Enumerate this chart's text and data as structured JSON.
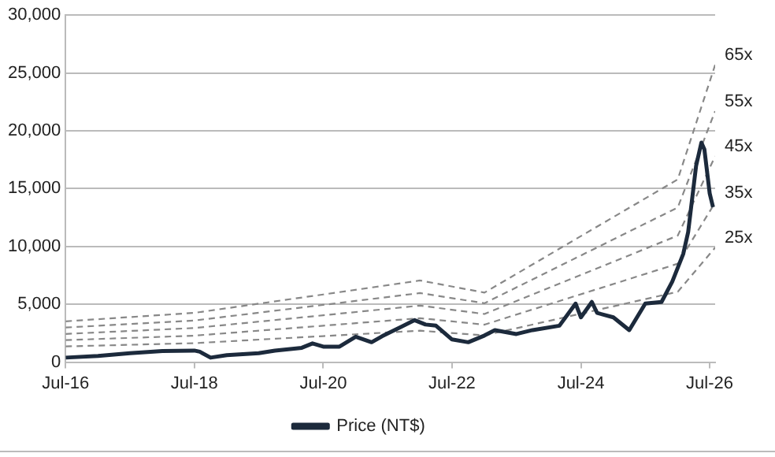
{
  "chart_data": {
    "type": "line",
    "x": [
      "2016-07",
      "2017-01",
      "2017-07",
      "2018-01",
      "2018-07",
      "2018-08",
      "2018-10",
      "2019-01",
      "2019-07",
      "2019-10",
      "2020-03",
      "2020-05",
      "2020-07",
      "2020-10",
      "2021-01",
      "2021-04",
      "2021-06",
      "2021-12",
      "2022-02",
      "2022-04",
      "2022-07",
      "2022-10",
      "2023-01",
      "2023-03",
      "2023-07",
      "2023-10",
      "2024-03",
      "2024-06",
      "2024-07",
      "2024-09",
      "2024-10",
      "2025-01",
      "2025-04",
      "2025-07",
      "2025-10",
      "2025-12",
      "2026-02",
      "2026-03",
      "2026-04-15",
      "2026-05-15",
      "2026-06",
      "2026-07",
      "2026-07-20"
    ],
    "series": [
      {
        "name": "Price (NT$)",
        "color": "#1c2a3c",
        "line_style": "solid",
        "values": [
          390,
          530,
          770,
          960,
          1000,
          900,
          390,
          600,
          770,
          1000,
          1240,
          1620,
          1340,
          1340,
          2200,
          1720,
          2250,
          3630,
          3250,
          3150,
          1960,
          1720,
          2300,
          2770,
          2430,
          2770,
          3150,
          5060,
          3870,
          5200,
          4250,
          3870,
          2770,
          5060,
          5200,
          6960,
          9350,
          11250,
          16970,
          18980,
          18400,
          14590,
          13400
        ]
      },
      {
        "name": "65x",
        "color": "#888888",
        "line_style": "dashed",
        "x": [
          "2016-07",
          "2018-07",
          "2020-07",
          "2022-01",
          "2023-01",
          "2026-01",
          "2026-08"
        ],
        "values": [
          3530,
          4260,
          5850,
          7060,
          6010,
          15800,
          25700
        ]
      },
      {
        "name": "55x",
        "color": "#888888",
        "line_style": "dashed",
        "x": [
          "2016-07",
          "2018-07",
          "2020-07",
          "2022-01",
          "2023-01",
          "2026-01",
          "2026-08"
        ],
        "values": [
          2990,
          3600,
          4950,
          5970,
          5090,
          13370,
          21700
        ]
      },
      {
        "name": "45x",
        "color": "#888888",
        "line_style": "dashed",
        "x": [
          "2016-07",
          "2018-07",
          "2020-07",
          "2022-01",
          "2023-01",
          "2026-01",
          "2026-08"
        ],
        "values": [
          2440,
          2950,
          4050,
          4890,
          4160,
          10940,
          17800
        ]
      },
      {
        "name": "35x",
        "color": "#888888",
        "line_style": "dashed",
        "x": [
          "2016-07",
          "2018-07",
          "2020-07",
          "2022-01",
          "2023-01",
          "2026-01",
          "2026-08"
        ],
        "values": [
          1900,
          2290,
          3150,
          3800,
          3240,
          8510,
          13800
        ]
      },
      {
        "name": "25x",
        "color": "#888888",
        "line_style": "dashed",
        "x": [
          "2016-07",
          "2018-07",
          "2020-07",
          "2022-01",
          "2023-01",
          "2026-01",
          "2026-08"
        ],
        "values": [
          1360,
          1640,
          2250,
          2720,
          2310,
          6080,
          9900
        ]
      }
    ],
    "xlim": [
      "2016-07",
      "2026-08"
    ],
    "xticks": [
      {
        "value": "2016-07",
        "label": "Jul-16"
      },
      {
        "value": "2018-07",
        "label": "Jul-18"
      },
      {
        "value": "2020-07",
        "label": "Jul-20"
      },
      {
        "value": "2022-07",
        "label": "Jul-22"
      },
      {
        "value": "2024-07",
        "label": "Jul-24"
      },
      {
        "value": "2026-07",
        "label": "Jul-26"
      }
    ],
    "ylim": [
      0,
      30000
    ],
    "yticks": [
      {
        "value": 0,
        "label": "0"
      },
      {
        "value": 5000,
        "label": "5,000"
      },
      {
        "value": 10000,
        "label": "10,000"
      },
      {
        "value": 15000,
        "label": "15,000"
      },
      {
        "value": 20000,
        "label": "20,000"
      },
      {
        "value": 25000,
        "label": "25,000"
      },
      {
        "value": 30000,
        "label": "30,000"
      }
    ],
    "grid": "y",
    "legend": "bottom",
    "marker": "none"
  }
}
